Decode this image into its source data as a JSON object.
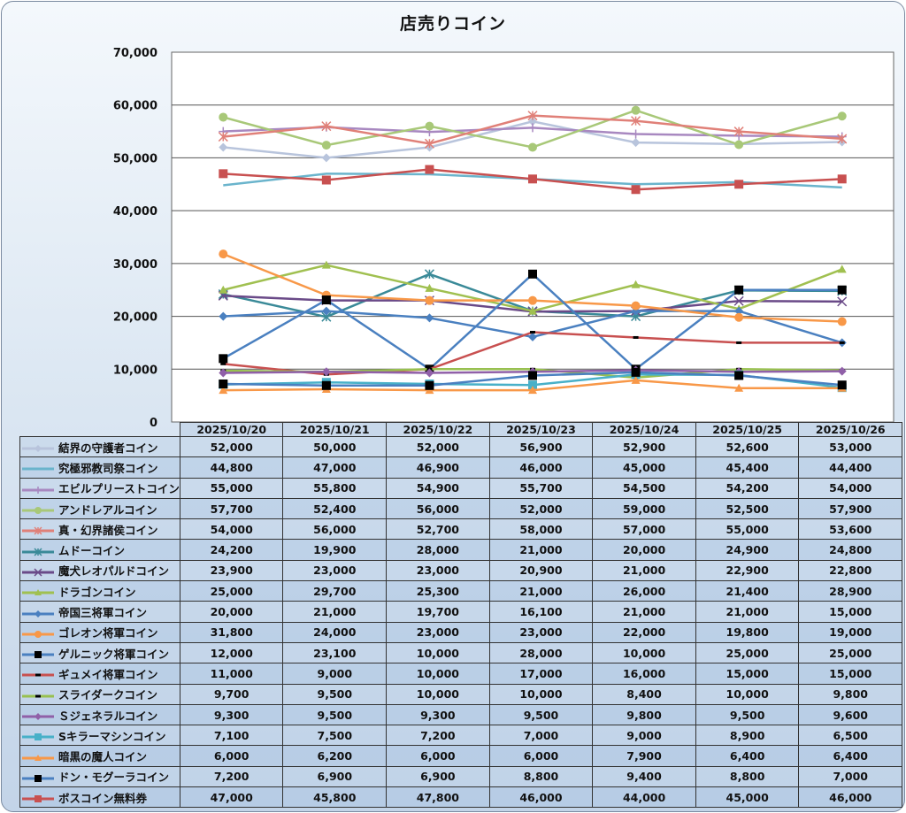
{
  "chart_data": {
    "type": "line",
    "title": "店売りコイン",
    "xlabel": "",
    "ylabel": "",
    "ylim": [
      0,
      70000
    ],
    "yticks": [
      "0",
      "10,000",
      "20,000",
      "30,000",
      "40,000",
      "50,000",
      "60,000",
      "70,000"
    ],
    "ytick_values": [
      0,
      10000,
      20000,
      30000,
      40000,
      50000,
      60000,
      70000
    ],
    "grid": true,
    "legend": "table-left",
    "categories": [
      "2025/10/20",
      "2025/10/21",
      "2025/10/22",
      "2025/10/23",
      "2025/10/24",
      "2025/10/25",
      "2025/10/26"
    ],
    "series": [
      {
        "name": "結界の守護者コイン",
        "color": "#b8c4dc",
        "marker": "diamond",
        "values": [
          52000,
          50000,
          52000,
          56900,
          52900,
          52600,
          53000
        ],
        "labels": [
          "52,000",
          "50,000",
          "52,000",
          "56,900",
          "52,900",
          "52,600",
          "53,000"
        ]
      },
      {
        "name": "究極邪教司祭コイン",
        "color": "#6ab4cc",
        "marker": "none",
        "values": [
          44800,
          47000,
          46900,
          46000,
          45000,
          45400,
          44400
        ],
        "labels": [
          "44,800",
          "47,000",
          "46,900",
          "46,000",
          "45,000",
          "45,400",
          "44,400"
        ]
      },
      {
        "name": "エビルプリーストコイン",
        "color": "#a888c0",
        "marker": "plus",
        "values": [
          55000,
          55800,
          54900,
          55700,
          54500,
          54200,
          54000
        ],
        "labels": [
          "55,000",
          "55,800",
          "54,900",
          "55,700",
          "54,500",
          "54,200",
          "54,000"
        ]
      },
      {
        "name": "アンドレアルコイン",
        "color": "#a8c878",
        "marker": "circle",
        "values": [
          57700,
          52400,
          56000,
          52000,
          59000,
          52500,
          57900
        ],
        "labels": [
          "57,700",
          "52,400",
          "56,000",
          "52,000",
          "59,000",
          "52,500",
          "57,900"
        ]
      },
      {
        "name": "真・幻界諸侯コイン",
        "color": "#e08078",
        "marker": "asterisk",
        "values": [
          54000,
          56000,
          52700,
          58000,
          57000,
          55000,
          53600
        ],
        "labels": [
          "54,000",
          "56,000",
          "52,700",
          "58,000",
          "57,000",
          "55,000",
          "53,600"
        ]
      },
      {
        "name": "ムドーコイン",
        "color": "#3a8a98",
        "marker": "asterisk",
        "values": [
          24200,
          19900,
          28000,
          21000,
          20000,
          24900,
          24800
        ],
        "labels": [
          "24,200",
          "19,900",
          "28,000",
          "21,000",
          "20,000",
          "24,900",
          "24,800"
        ]
      },
      {
        "name": "魔犬レオパルドコイン",
        "color": "#6a4a88",
        "marker": "x",
        "values": [
          23900,
          23000,
          23000,
          20900,
          21000,
          22900,
          22800
        ],
        "labels": [
          "23,900",
          "23,000",
          "23,000",
          "20,900",
          "21,000",
          "22,900",
          "22,800"
        ]
      },
      {
        "name": "ドラゴンコイン",
        "color": "#a0c050",
        "marker": "triangle",
        "values": [
          25000,
          29700,
          25300,
          21000,
          26000,
          21400,
          28900
        ],
        "labels": [
          "25,000",
          "29,700",
          "25,300",
          "21,000",
          "26,000",
          "21,400",
          "28,900"
        ]
      },
      {
        "name": "帝国三将軍コイン",
        "color": "#4a80c0",
        "marker": "diamond",
        "values": [
          20000,
          21000,
          19700,
          16100,
          21000,
          21000,
          15000
        ],
        "labels": [
          "20,000",
          "21,000",
          "19,700",
          "16,100",
          "21,000",
          "21,000",
          "15,000"
        ]
      },
      {
        "name": "ゴレオン将軍コイン",
        "color": "#f89848",
        "marker": "circle",
        "values": [
          31800,
          24000,
          23000,
          23000,
          22000,
          19800,
          19000
        ],
        "labels": [
          "31,800",
          "24,000",
          "23,000",
          "23,000",
          "22,000",
          "19,800",
          "19,000"
        ]
      },
      {
        "name": "ゲルニック将軍コイン",
        "color": "#4a80c0",
        "marker": "square-black",
        "values": [
          12000,
          23100,
          10000,
          28000,
          10000,
          25000,
          25000
        ],
        "labels": [
          "12,000",
          "23,100",
          "10,000",
          "28,000",
          "10,000",
          "25,000",
          "25,000"
        ]
      },
      {
        "name": "ギュメイ将軍コイン",
        "color": "#c85050",
        "marker": "dash-black",
        "values": [
          11000,
          9000,
          10000,
          17000,
          16000,
          15000,
          15000
        ],
        "labels": [
          "11,000",
          "9,000",
          "10,000",
          "17,000",
          "16,000",
          "15,000",
          "15,000"
        ]
      },
      {
        "name": "スライダークコイン",
        "color": "#98c050",
        "marker": "dash-black",
        "values": [
          9700,
          9500,
          10000,
          10000,
          8400,
          10000,
          9800
        ],
        "labels": [
          "9,700",
          "9,500",
          "10,000",
          "10,000",
          "8,400",
          "10,000",
          "9,800"
        ]
      },
      {
        "name": "Ｓジェネラルコイン",
        "color": "#9060a8",
        "marker": "diamond",
        "values": [
          9300,
          9500,
          9300,
          9500,
          9800,
          9500,
          9600
        ],
        "labels": [
          "9,300",
          "9,500",
          "9,300",
          "9,500",
          "9,800",
          "9,500",
          "9,600"
        ]
      },
      {
        "name": "Sキラーマシンコイン",
        "color": "#48b0c8",
        "marker": "square",
        "values": [
          7100,
          7500,
          7200,
          7000,
          9000,
          8900,
          6500
        ],
        "labels": [
          "7,100",
          "7,500",
          "7,200",
          "7,000",
          "9,000",
          "8,900",
          "6,500"
        ]
      },
      {
        "name": "暗黒の魔人コイン",
        "color": "#f89848",
        "marker": "triangle",
        "values": [
          6000,
          6200,
          6000,
          6000,
          7900,
          6400,
          6400
        ],
        "labels": [
          "6,000",
          "6,200",
          "6,000",
          "6,000",
          "7,900",
          "6,400",
          "6,400"
        ]
      },
      {
        "name": "ドン・モグーラコイン",
        "color": "#4a80c0",
        "marker": "square-black",
        "values": [
          7200,
          6900,
          6900,
          8800,
          9400,
          8800,
          7000
        ],
        "labels": [
          "7,200",
          "6,900",
          "6,900",
          "8,800",
          "9,400",
          "8,800",
          "7,000"
        ]
      },
      {
        "name": "ボスコイン無料券",
        "color": "#c85050",
        "marker": "square",
        "values": [
          47000,
          45800,
          47800,
          46000,
          44000,
          45000,
          46000
        ],
        "labels": [
          "47,000",
          "45,800",
          "47,800",
          "46,000",
          "44,000",
          "45,000",
          "46,000"
        ]
      }
    ]
  }
}
